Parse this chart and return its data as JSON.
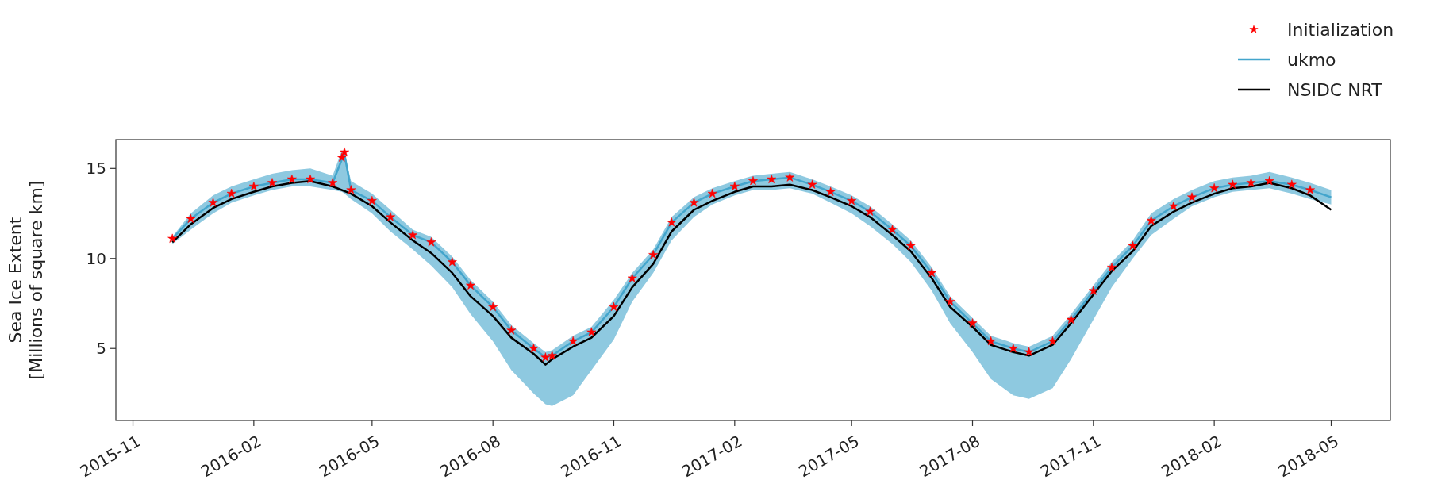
{
  "chart_data": {
    "type": "line",
    "ylabel": "Sea Ice Extent\n[Millions of square km]",
    "xlim": [
      "2015-10-19",
      "2018-06-15"
    ],
    "ylim": [
      1.0,
      16.6
    ],
    "xticks": [
      "2015-11",
      "2016-02",
      "2016-05",
      "2016-08",
      "2016-11",
      "2017-02",
      "2017-05",
      "2017-08",
      "2017-11",
      "2018-02",
      "2018-05"
    ],
    "yticks": [
      5,
      10,
      15
    ],
    "legend": "top right",
    "series": [
      {
        "name": "Initialization",
        "type": "scatter",
        "marker": "star",
        "color": "#ff0000",
        "x": [
          "2015-12-01",
          "2015-12-15",
          "2016-01-01",
          "2016-01-15",
          "2016-02-01",
          "2016-02-15",
          "2016-03-01",
          "2016-03-15",
          "2016-04-01",
          "2016-04-08",
          "2016-04-10",
          "2016-04-15",
          "2016-05-01",
          "2016-05-15",
          "2016-06-01",
          "2016-06-15",
          "2016-07-01",
          "2016-07-15",
          "2016-08-01",
          "2016-08-15",
          "2016-09-01",
          "2016-09-10",
          "2016-09-15",
          "2016-10-01",
          "2016-10-15",
          "2016-11-01",
          "2016-11-15",
          "2016-12-01",
          "2016-12-15",
          "2017-01-01",
          "2017-01-15",
          "2017-02-01",
          "2017-02-15",
          "2017-03-01",
          "2017-03-15",
          "2017-04-01",
          "2017-04-15",
          "2017-05-01",
          "2017-05-15",
          "2017-06-01",
          "2017-06-15",
          "2017-07-01",
          "2017-07-15",
          "2017-08-01",
          "2017-08-15",
          "2017-09-01",
          "2017-09-13",
          "2017-10-01",
          "2017-10-15",
          "2017-11-01",
          "2017-11-15",
          "2017-12-01",
          "2017-12-15",
          "2018-01-01",
          "2018-01-15",
          "2018-02-01",
          "2018-02-15",
          "2018-03-01",
          "2018-03-15",
          "2018-04-01",
          "2018-04-15"
        ],
        "values": [
          11.1,
          12.2,
          13.1,
          13.6,
          14.0,
          14.2,
          14.4,
          14.4,
          14.2,
          15.6,
          15.9,
          13.8,
          13.2,
          12.3,
          11.3,
          10.9,
          9.8,
          8.5,
          7.3,
          6.0,
          5.0,
          4.5,
          4.6,
          5.4,
          5.9,
          7.3,
          8.9,
          10.2,
          12.0,
          13.1,
          13.6,
          14.0,
          14.3,
          14.4,
          14.5,
          14.1,
          13.7,
          13.2,
          12.6,
          11.6,
          10.7,
          9.2,
          7.6,
          6.4,
          5.4,
          5.0,
          4.8,
          5.4,
          6.6,
          8.2,
          9.5,
          10.7,
          12.1,
          12.9,
          13.4,
          13.9,
          14.1,
          14.2,
          14.3,
          14.1,
          13.8
        ]
      },
      {
        "name": "ukmo",
        "marker": "none",
        "color": "#43a5cc",
        "x": [
          "2015-12-01",
          "2015-12-15",
          "2016-01-01",
          "2016-01-15",
          "2016-02-01",
          "2016-02-15",
          "2016-03-01",
          "2016-03-15",
          "2016-04-01",
          "2016-04-08",
          "2016-04-10",
          "2016-04-15",
          "2016-05-01",
          "2016-05-15",
          "2016-06-01",
          "2016-06-15",
          "2016-07-01",
          "2016-07-15",
          "2016-08-01",
          "2016-08-15",
          "2016-09-01",
          "2016-09-10",
          "2016-09-15",
          "2016-10-01",
          "2016-10-15",
          "2016-11-01",
          "2016-11-15",
          "2016-12-01",
          "2016-12-15",
          "2017-01-01",
          "2017-01-15",
          "2017-02-01",
          "2017-02-15",
          "2017-03-01",
          "2017-03-15",
          "2017-04-01",
          "2017-04-15",
          "2017-05-01",
          "2017-05-15",
          "2017-06-01",
          "2017-06-15",
          "2017-07-01",
          "2017-07-15",
          "2017-08-01",
          "2017-08-15",
          "2017-09-01",
          "2017-09-13",
          "2017-10-01",
          "2017-10-15",
          "2017-11-01",
          "2017-11-15",
          "2017-12-01",
          "2017-12-15",
          "2018-01-01",
          "2018-01-15",
          "2018-02-01",
          "2018-02-15",
          "2018-03-01",
          "2018-03-15",
          "2018-04-01",
          "2018-04-15",
          "2018-05-01"
        ],
        "values": [
          11.1,
          12.2,
          13.1,
          13.6,
          14.0,
          14.2,
          14.4,
          14.4,
          14.2,
          15.5,
          15.8,
          13.8,
          13.2,
          12.3,
          11.3,
          10.9,
          9.8,
          8.5,
          7.3,
          6.0,
          5.0,
          4.5,
          4.6,
          5.4,
          5.9,
          7.3,
          8.9,
          10.2,
          12.0,
          13.1,
          13.6,
          14.0,
          14.3,
          14.4,
          14.5,
          14.1,
          13.7,
          13.2,
          12.6,
          11.6,
          10.7,
          9.2,
          7.6,
          6.4,
          5.4,
          5.0,
          4.8,
          5.4,
          6.6,
          8.2,
          9.5,
          10.7,
          12.1,
          12.9,
          13.4,
          13.9,
          14.1,
          14.2,
          14.3,
          14.1,
          13.8,
          13.4
        ],
        "lower": [
          10.8,
          11.6,
          12.5,
          13.1,
          13.5,
          13.8,
          14.0,
          14.0,
          13.8,
          13.7,
          13.6,
          13.3,
          12.5,
          11.5,
          10.5,
          9.6,
          8.4,
          6.9,
          5.4,
          3.8,
          2.5,
          1.9,
          1.8,
          2.4,
          3.8,
          5.5,
          7.6,
          9.2,
          11.0,
          12.3,
          13.0,
          13.5,
          13.8,
          13.8,
          13.9,
          13.6,
          13.1,
          12.5,
          11.8,
          10.8,
          9.8,
          8.2,
          6.4,
          4.8,
          3.3,
          2.4,
          2.2,
          2.8,
          4.4,
          6.6,
          8.4,
          10.0,
          11.3,
          12.2,
          12.9,
          13.4,
          13.7,
          13.8,
          13.9,
          13.6,
          13.3,
          13.0
        ],
        "upper": [
          11.2,
          12.5,
          13.5,
          14.0,
          14.4,
          14.7,
          14.9,
          15.0,
          14.6,
          16.0,
          15.9,
          14.3,
          13.6,
          12.7,
          11.6,
          11.2,
          10.1,
          8.8,
          7.6,
          6.3,
          5.3,
          4.8,
          4.9,
          5.7,
          6.2,
          7.7,
          9.2,
          10.5,
          12.3,
          13.4,
          13.9,
          14.3,
          14.6,
          14.7,
          14.8,
          14.4,
          14.0,
          13.5,
          12.9,
          11.9,
          11.0,
          9.5,
          7.9,
          6.7,
          5.7,
          5.3,
          5.1,
          5.7,
          6.9,
          8.5,
          9.8,
          11.0,
          12.5,
          13.3,
          13.8,
          14.3,
          14.5,
          14.6,
          14.8,
          14.5,
          14.2,
          13.8
        ]
      },
      {
        "name": "NSIDC NRT",
        "marker": "none",
        "color": "#000000",
        "x": [
          "2015-12-01",
          "2015-12-15",
          "2016-01-01",
          "2016-01-15",
          "2016-02-01",
          "2016-02-15",
          "2016-03-01",
          "2016-03-15",
          "2016-04-01",
          "2016-04-15",
          "2016-05-01",
          "2016-05-15",
          "2016-06-01",
          "2016-06-15",
          "2016-07-01",
          "2016-07-15",
          "2016-08-01",
          "2016-08-15",
          "2016-09-01",
          "2016-09-10",
          "2016-09-15",
          "2016-10-01",
          "2016-10-15",
          "2016-11-01",
          "2016-11-15",
          "2016-12-01",
          "2016-12-15",
          "2017-01-01",
          "2017-01-15",
          "2017-02-01",
          "2017-02-15",
          "2017-03-01",
          "2017-03-15",
          "2017-04-01",
          "2017-04-15",
          "2017-05-01",
          "2017-05-15",
          "2017-06-01",
          "2017-06-15",
          "2017-07-01",
          "2017-07-15",
          "2017-08-01",
          "2017-08-15",
          "2017-09-01",
          "2017-09-13",
          "2017-10-01",
          "2017-10-15",
          "2017-11-01",
          "2017-11-15",
          "2017-12-01",
          "2017-12-15",
          "2018-01-01",
          "2018-01-15",
          "2018-02-01",
          "2018-02-15",
          "2018-03-01",
          "2018-03-15",
          "2018-04-01",
          "2018-04-15",
          "2018-05-01"
        ],
        "values": [
          10.9,
          11.9,
          12.8,
          13.3,
          13.7,
          14.0,
          14.2,
          14.3,
          14.0,
          13.6,
          12.9,
          12.0,
          11.0,
          10.3,
          9.2,
          7.9,
          6.8,
          5.6,
          4.7,
          4.1,
          4.4,
          5.1,
          5.6,
          6.8,
          8.4,
          9.7,
          11.5,
          12.7,
          13.2,
          13.7,
          14.0,
          14.0,
          14.1,
          13.8,
          13.4,
          12.9,
          12.3,
          11.3,
          10.4,
          8.9,
          7.3,
          6.2,
          5.2,
          4.8,
          4.6,
          5.2,
          6.4,
          8.0,
          9.3,
          10.4,
          11.8,
          12.6,
          13.1,
          13.6,
          13.9,
          14.0,
          14.2,
          13.9,
          13.5,
          12.7
        ]
      }
    ]
  }
}
